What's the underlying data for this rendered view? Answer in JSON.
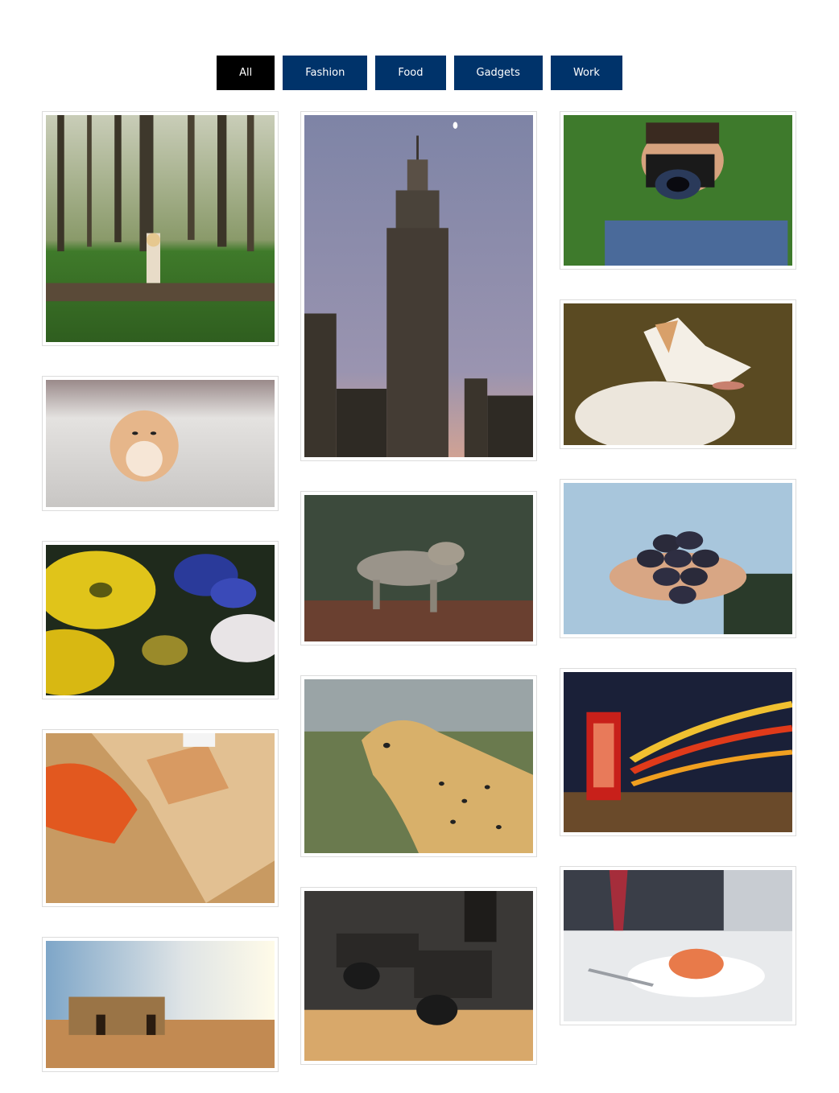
{
  "filters": {
    "active": "All",
    "items": [
      "All",
      "Fashion",
      "Food",
      "Gadgets",
      "Work"
    ]
  },
  "gallery": {
    "photos": [
      {
        "id": "girl-forest",
        "icon": "forest-girl-photo"
      },
      {
        "id": "hamster",
        "icon": "hamster-photo"
      },
      {
        "id": "flowers",
        "icon": "flowers-photo"
      },
      {
        "id": "desk",
        "icon": "desk-photo"
      },
      {
        "id": "hut-desert",
        "icon": "desert-hut-photo"
      },
      {
        "id": "skyscraper",
        "icon": "skyscraper-photo"
      },
      {
        "id": "coyote",
        "icon": "coyote-photo"
      },
      {
        "id": "cheetah",
        "icon": "cheetah-photo"
      },
      {
        "id": "cameras",
        "icon": "vintage-cameras-photo"
      },
      {
        "id": "photographer",
        "icon": "photographer-photo"
      },
      {
        "id": "dog",
        "icon": "white-dog-photo"
      },
      {
        "id": "grapes",
        "icon": "grapes-photo"
      },
      {
        "id": "phone-booth",
        "icon": "phone-booth-photo"
      },
      {
        "id": "dinner",
        "icon": "dinner-plate-photo"
      }
    ]
  },
  "colors": {
    "filter_bg": "#00336a",
    "filter_active_bg": "#000000",
    "filter_text": "#ffffff",
    "card_border": "#dcdcdc"
  }
}
